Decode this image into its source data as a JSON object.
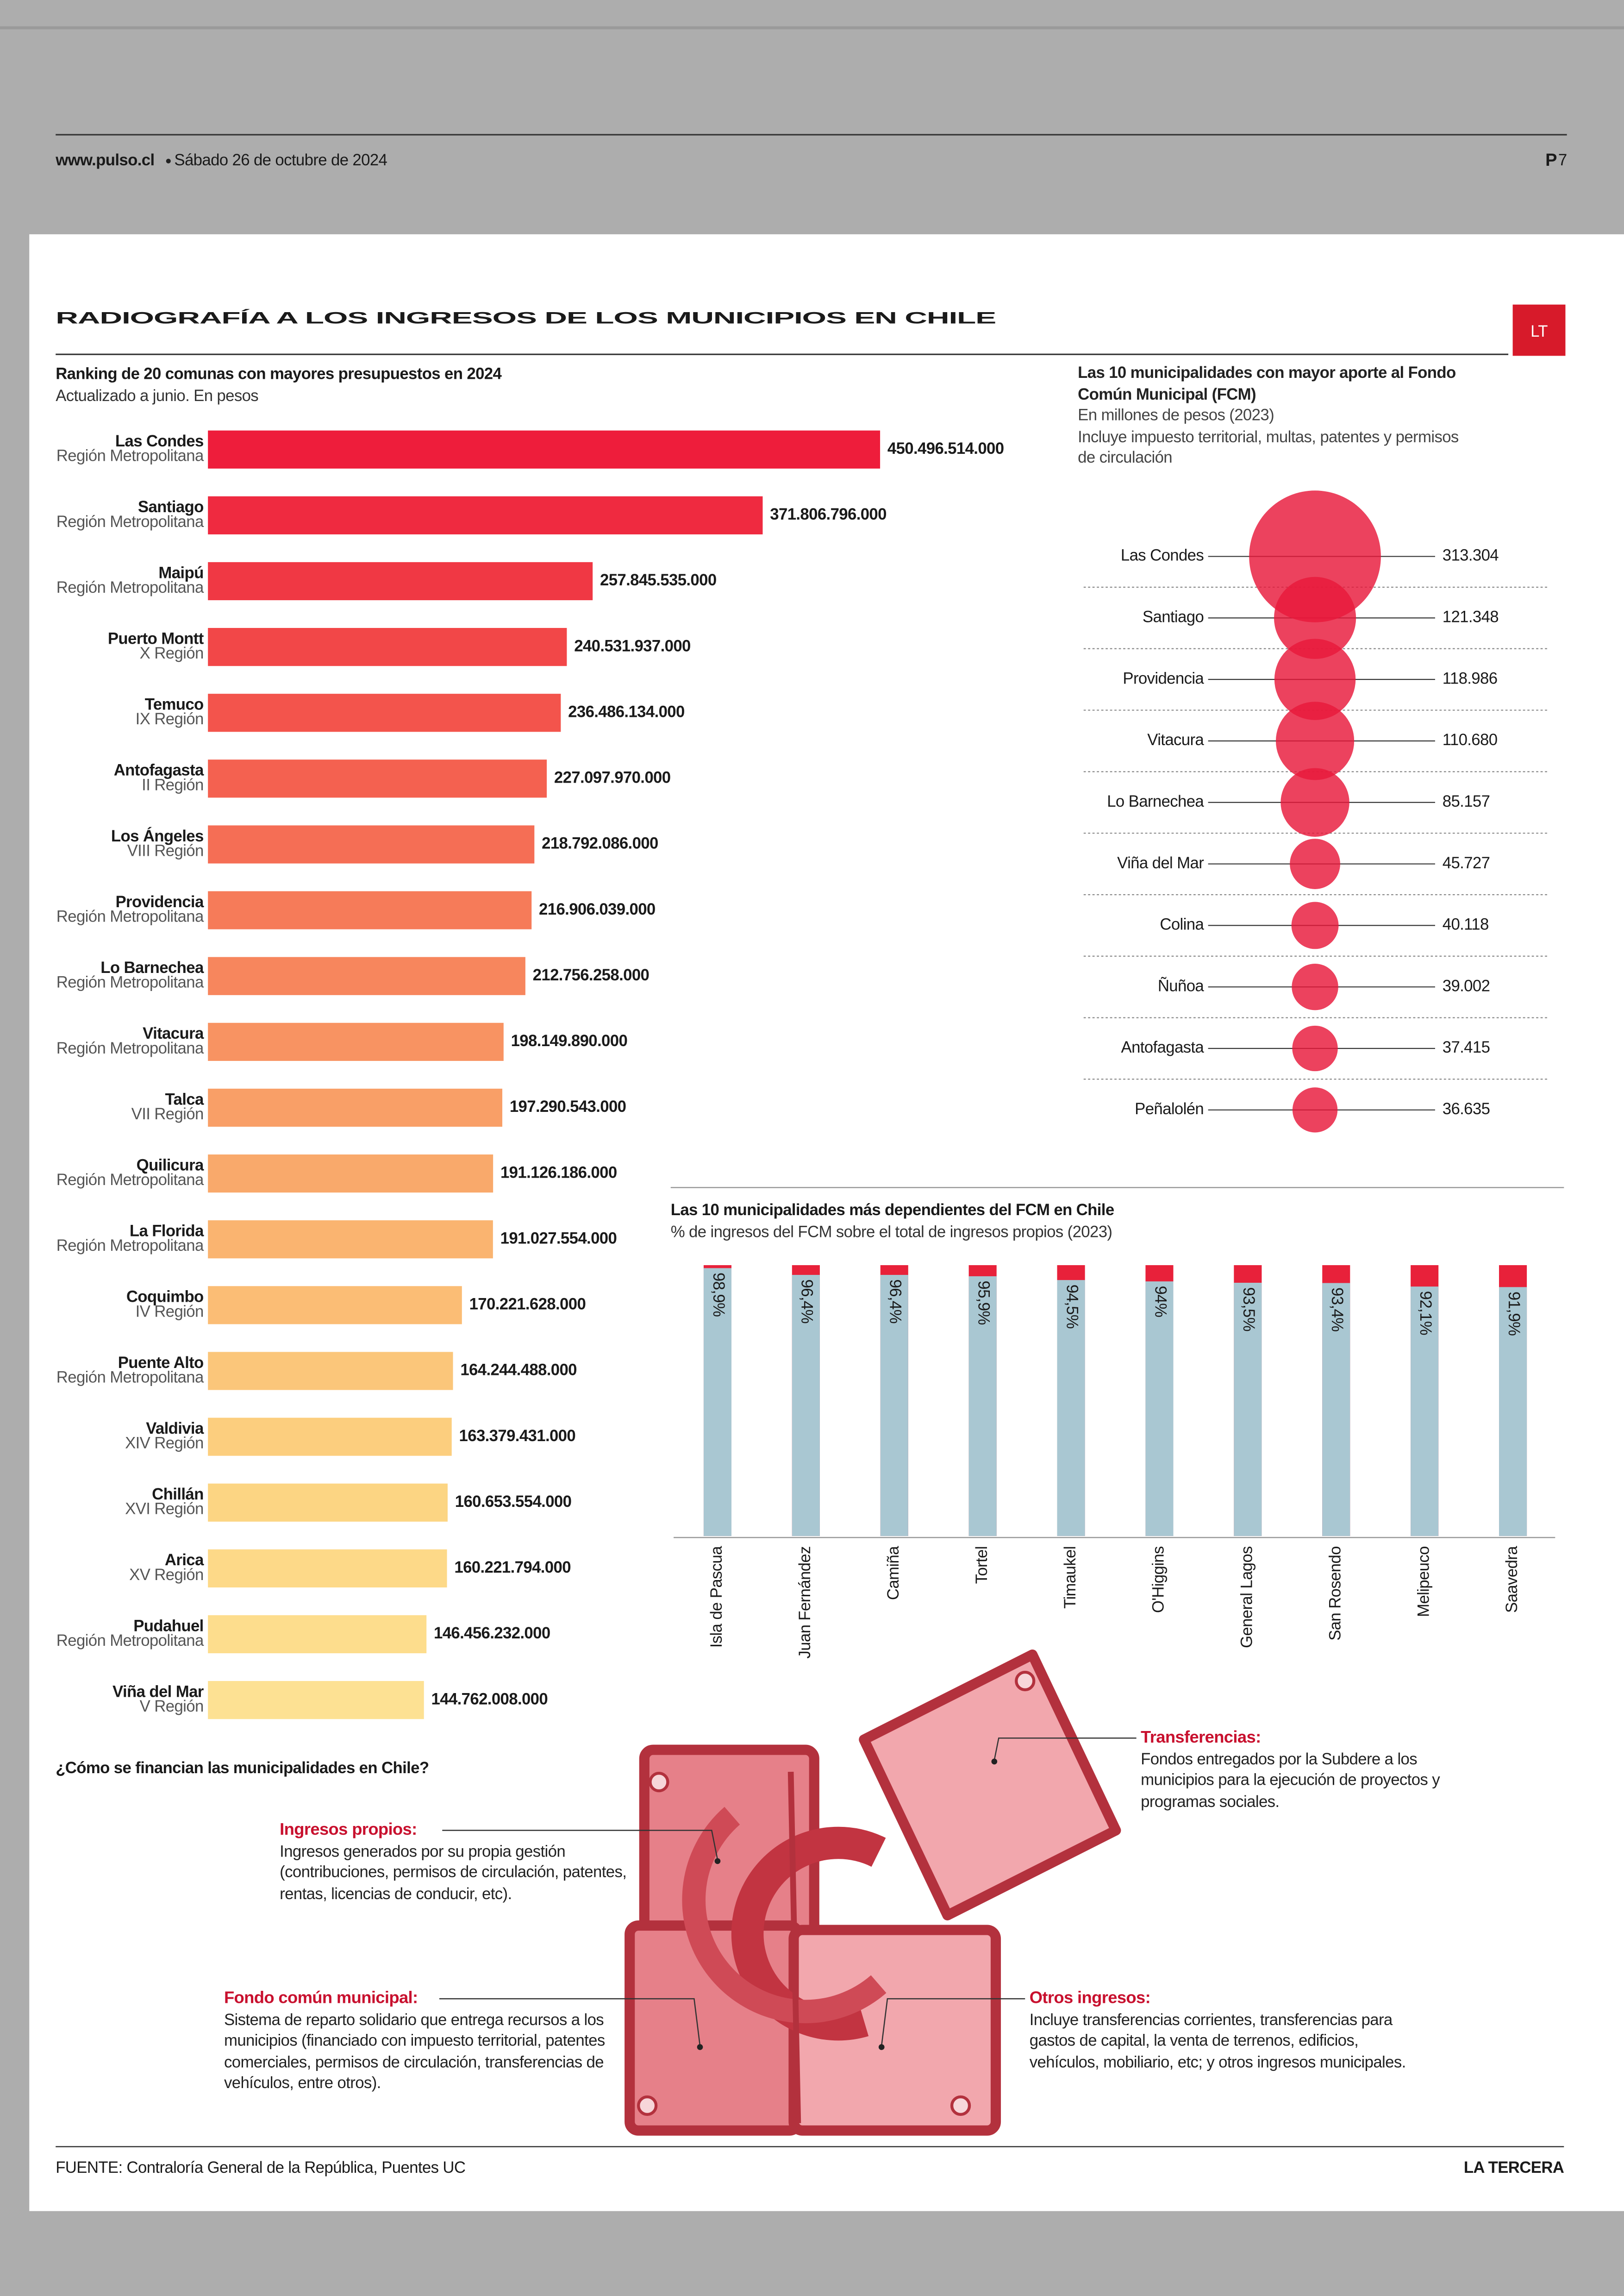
{
  "header": {
    "site": "www.pulso.cl",
    "date": "Sábado 26 de octubre de 2024",
    "page_prefix": "P",
    "page_number": "7"
  },
  "title": "RADIOGRAFÍA A LOS INGRESOS DE LOS MUNICIPIOS EN CHILE",
  "logo": "LT",
  "chart_data": [
    {
      "type": "bar",
      "orientation": "horizontal",
      "title": "Ranking de 20 comunas con mayores presupuestos en 2024",
      "subtitle": "Actualizado a junio. En pesos",
      "categories": [
        "Las Condes",
        "Santiago",
        "Maipú",
        "Puerto Montt",
        "Temuco",
        "Antofagasta",
        "Los Ángeles",
        "Providencia",
        "Lo Barnechea",
        "Vitacura",
        "Talca",
        "Quilicura",
        "La Florida",
        "Coquimbo",
        "Puente Alto",
        "Valdivia",
        "Chillán",
        "Arica",
        "Pudahuel",
        "Viña del Mar"
      ],
      "regions": [
        "Región Metropolitana",
        "Región Metropolitana",
        "Región Metropolitana",
        "X Región",
        "IX Región",
        "II Región",
        "VIII Región",
        "Región Metropolitana",
        "Región Metropolitana",
        "Región Metropolitana",
        "VII Región",
        "Región Metropolitana",
        "Región Metropolitana",
        "IV Región",
        "Región Metropolitana",
        "XIV Región",
        "XVI Región",
        "XV Región",
        "Región Metropolitana",
        "V Región"
      ],
      "values": [
        450496514000,
        371806796000,
        257845535000,
        240531937000,
        236486134000,
        227097970000,
        218792086000,
        216906039000,
        212756258000,
        198149890000,
        197290543000,
        191126186000,
        191027554000,
        170221628000,
        164244488000,
        163379431000,
        160653554000,
        160221794000,
        146456232000,
        144762008000
      ],
      "value_labels": [
        "450.496.514.000",
        "371.806.796.000",
        "257.845.535.000",
        "240.531.937.000",
        "236.486.134.000",
        "227.097.970.000",
        "218.792.086.000",
        "216.906.039.000",
        "212.756.258.000",
        "198.149.890.000",
        "197.290.543.000",
        "191.126.186.000",
        "191.027.554.000",
        "170.221.628.000",
        "164.244.488.000",
        "163.379.431.000",
        "160.653.554.000",
        "160.221.794.000",
        "146.456.232.000",
        "144.762.008.000"
      ],
      "colors": [
        "#ee1d3b",
        "#ef2a40",
        "#f03844",
        "#f24748",
        "#f3544c",
        "#f46150",
        "#f56e55",
        "#f67b59",
        "#f7865d",
        "#f89362",
        "#f99f67",
        "#f9a96b",
        "#fab470",
        "#fbbd75",
        "#fbc67a",
        "#fcce7e",
        "#fcd583",
        "#fdd988",
        "#fddd8d",
        "#fde193"
      ]
    },
    {
      "type": "bubble",
      "title": "Las 10 municipalidades con mayor aporte al Fondo Común Municipal (FCM)",
      "subtitle": "En millones de pesos (2023)",
      "note": "Incluye impuesto territorial, multas, patentes y permisos de circulación",
      "categories": [
        "Las Condes",
        "Santiago",
        "Providencia",
        "Vitacura",
        "Lo Barnechea",
        "Viña del Mar",
        "Colina",
        "Ñuñoa",
        "Antofagasta",
        "Peñalolén"
      ],
      "values": [
        313304,
        121348,
        118986,
        110680,
        85157,
        45727,
        40118,
        39002,
        37415,
        36635
      ],
      "value_labels": [
        "313.304",
        "121.348",
        "118.986",
        "110.680",
        "85.157",
        "45.727",
        "40.118",
        "39.002",
        "37.415",
        "36.635"
      ],
      "color": "#e8183a"
    },
    {
      "type": "bar",
      "orientation": "vertical",
      "title": "Las 10 municipalidades más dependientes del FCM en Chile",
      "subtitle": "% de ingresos del FCM sobre el total de ingresos propios (2023)",
      "categories": [
        "Isla de Pascua",
        "Juan Fernández",
        "Camiña",
        "Tortel",
        "Timaukel",
        "O'Higgins",
        "General Lagos",
        "San Rosendo",
        "Melipeuco",
        "Saavedra"
      ],
      "values": [
        98.9,
        96.4,
        96.4,
        95.9,
        94.5,
        94,
        93.5,
        93.4,
        92.1,
        91.9
      ],
      "value_labels": [
        "98,9%",
        "96,4%",
        "96,4%",
        "95,9%",
        "94,5%",
        "94%",
        "93,5%",
        "93,4%",
        "92,1%",
        "91,9%"
      ],
      "ylim": [
        0,
        100
      ],
      "color": "#a9c7d2",
      "background_color": "#e8213a"
    }
  ],
  "financing": {
    "title": "¿Cómo se financian las municipalidades en Chile?",
    "items": [
      {
        "title": "Transferencias:",
        "text": "Fondos entregados por la Subdere a los municipios para la ejecución de proyectos y programas sociales."
      },
      {
        "title": "Ingresos propios:",
        "text": "Ingresos generados por su propia gestión (contribuciones, permisos de circulación, patentes, rentas, licencias de conducir, etc)."
      },
      {
        "title": "Fondo común municipal:",
        "text": "Sistema de reparto solidario que entrega recursos a los municipios (financiado con impuesto territorial, patentes comerciales, permisos de circulación, transferencias de vehículos, entre otros)."
      },
      {
        "title": "Otros ingresos:",
        "text": "Incluye transferencias corrientes, transferencias para gastos de capital, la venta de terrenos, edificios, vehículos, mobiliario, etc; y otros ingresos municipales."
      }
    ]
  },
  "footer": {
    "source": "FUENTE: Contraloría General de la República, Puentes UC",
    "brand": "LA TERCERA"
  }
}
